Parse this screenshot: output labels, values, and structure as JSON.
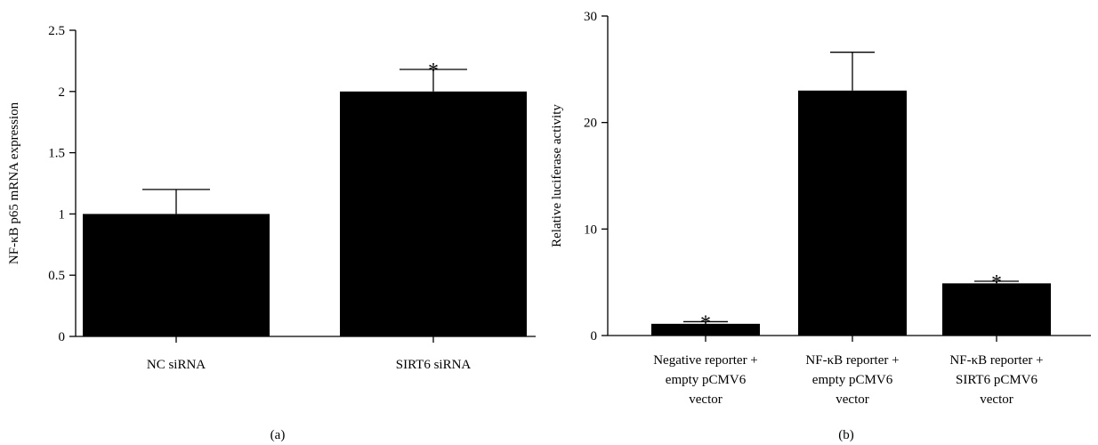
{
  "chart_data": [
    {
      "type": "bar",
      "panel_label": "(a)",
      "ylabel": "NF-κB p65 mRNA expression",
      "ylim": [
        0,
        2.5
      ],
      "yticks": [
        "0",
        "0.5",
        "1",
        "1.5",
        "2",
        "2.5"
      ],
      "categories": [
        [
          "NC siRNA"
        ],
        [
          "SIRT6 siRNA"
        ]
      ],
      "values": [
        1.0,
        2.0
      ],
      "errors": [
        0.2,
        0.18
      ],
      "significance": [
        "",
        "*"
      ],
      "bar_color": "#000000"
    },
    {
      "type": "bar",
      "panel_label": "(b)",
      "ylabel": "Relative luciferase activity",
      "ylim": [
        0,
        30
      ],
      "yticks": [
        "0",
        "10",
        "20",
        "30"
      ],
      "categories": [
        [
          "Negative reporter +",
          "empty pCMV6",
          "vector"
        ],
        [
          "NF-κB reporter +",
          "empty pCMV6",
          "vector"
        ],
        [
          "NF-κB reporter +",
          "SIRT6 pCMV6",
          "vector"
        ]
      ],
      "values": [
        1.1,
        23.0,
        4.9
      ],
      "errors": [
        0.2,
        3.6,
        0.2
      ],
      "significance": [
        "*",
        "",
        "*"
      ],
      "bar_color": "#000000"
    }
  ]
}
